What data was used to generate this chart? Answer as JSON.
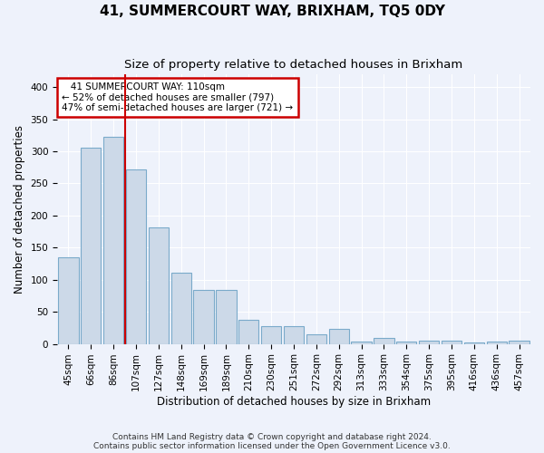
{
  "title": "41, SUMMERCOURT WAY, BRIXHAM, TQ5 0DY",
  "subtitle": "Size of property relative to detached houses in Brixham",
  "xlabel": "Distribution of detached houses by size in Brixham",
  "ylabel": "Number of detached properties",
  "categories": [
    "45sqm",
    "66sqm",
    "86sqm",
    "107sqm",
    "127sqm",
    "148sqm",
    "169sqm",
    "189sqm",
    "210sqm",
    "230sqm",
    "251sqm",
    "272sqm",
    "292sqm",
    "313sqm",
    "333sqm",
    "354sqm",
    "375sqm",
    "395sqm",
    "416sqm",
    "436sqm",
    "457sqm"
  ],
  "values": [
    135,
    305,
    322,
    272,
    182,
    111,
    84,
    84,
    38,
    27,
    27,
    15,
    24,
    4,
    9,
    4,
    5,
    5,
    2,
    4,
    5
  ],
  "bar_color": "#ccd9e8",
  "bar_edge_color": "#7aaaca",
  "red_line_index": 3,
  "annotation_line1": "   41 SUMMERCOURT WAY: 110sqm",
  "annotation_line2": "← 52% of detached houses are smaller (797)",
  "annotation_line3": "47% of semi-detached houses are larger (721) →",
  "annotation_box_color": "white",
  "annotation_box_edge_color": "#cc0000",
  "footer_line1": "Contains HM Land Registry data © Crown copyright and database right 2024.",
  "footer_line2": "Contains public sector information licensed under the Open Government Licence v3.0.",
  "background_color": "#eef2fb",
  "grid_color": "#ffffff",
  "ylim": [
    0,
    420
  ],
  "yticks": [
    0,
    50,
    100,
    150,
    200,
    250,
    300,
    350,
    400
  ],
  "title_fontsize": 11,
  "subtitle_fontsize": 9.5,
  "tick_fontsize": 7.5,
  "ylabel_fontsize": 8.5,
  "xlabel_fontsize": 8.5,
  "footer_fontsize": 6.5
}
